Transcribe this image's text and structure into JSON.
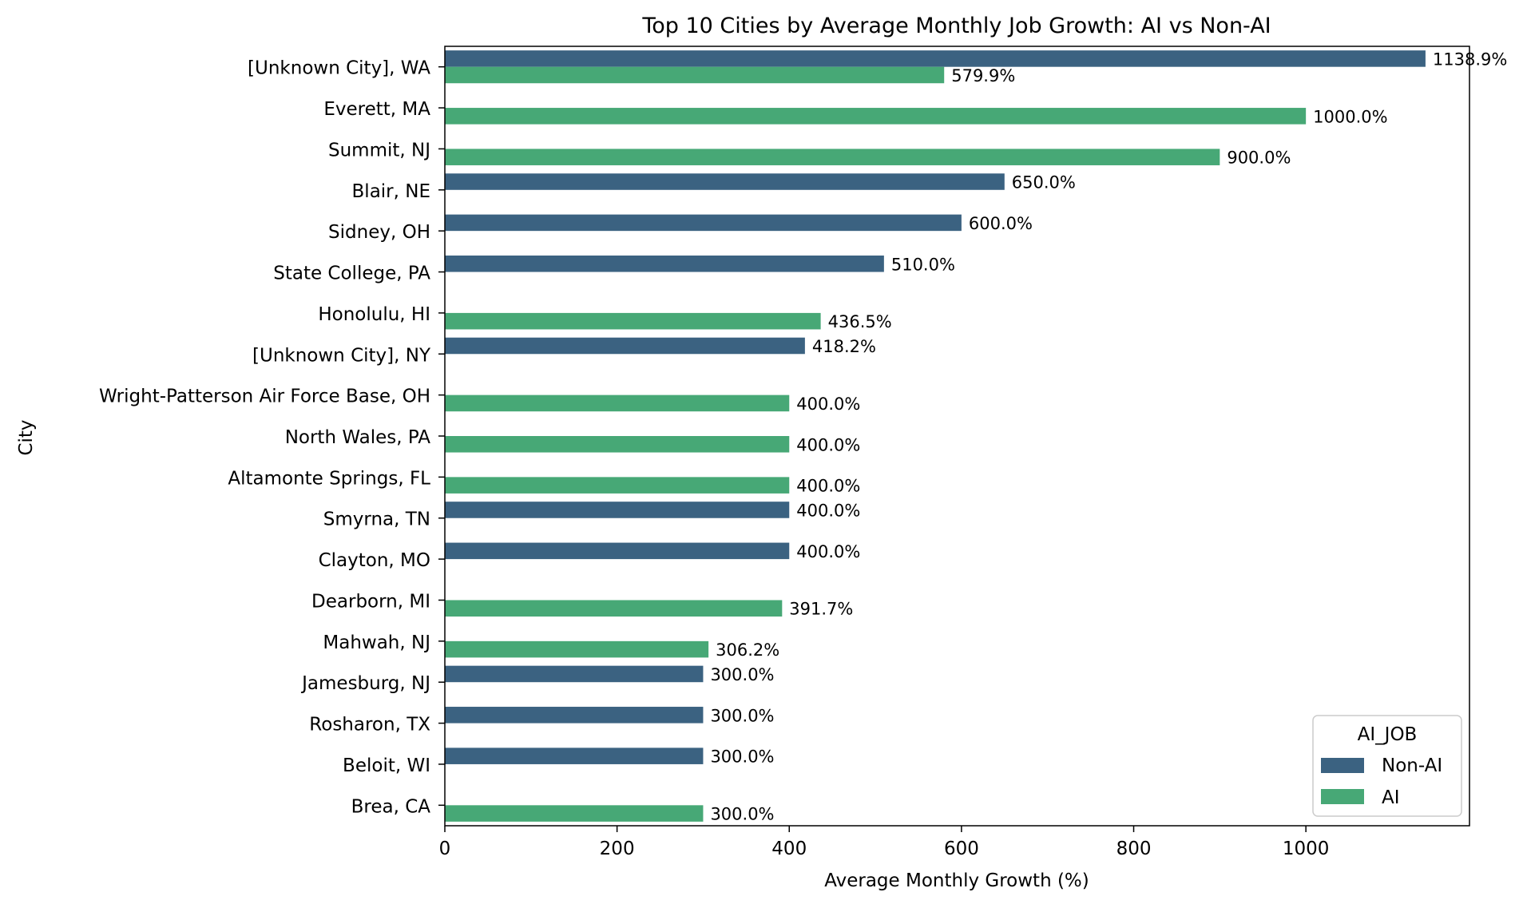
{
  "chart_data": {
    "type": "bar",
    "orientation": "horizontal",
    "title": "Top 10 Cities by Average Monthly Job Growth: AI vs Non-AI",
    "xlabel": "Average Monthly Growth (%)",
    "ylabel": "City",
    "xlim": [
      0,
      1190
    ],
    "xticks": [
      0,
      200,
      400,
      600,
      800,
      1000
    ],
    "grid": false,
    "legend": {
      "title": "AI_JOB",
      "placement": "lower-right",
      "entries": [
        {
          "name": "Non-AI",
          "color": "#3b6281"
        },
        {
          "name": "AI",
          "color": "#47a876"
        }
      ]
    },
    "categories": [
      "[Unknown City], WA",
      "Everett, MA",
      "Summit, NJ",
      "Blair, NE",
      "Sidney, OH",
      "State College, PA",
      "Honolulu, HI",
      "[Unknown City], NY",
      "Wright-Patterson Air Force Base, OH",
      "North Wales, PA",
      "Altamonte Springs, FL",
      "Smyrna, TN",
      "Clayton, MO",
      "Dearborn, MI",
      "Mahwah, NJ",
      "Jamesburg, NJ",
      "Rosharon, TX",
      "Beloit, WI",
      "Brea, CA"
    ],
    "series": [
      {
        "name": "Non-AI",
        "color": "#3b6281",
        "values": [
          1138.9,
          null,
          null,
          650.0,
          600.0,
          510.0,
          null,
          418.2,
          null,
          null,
          null,
          400.0,
          400.0,
          null,
          null,
          300.0,
          300.0,
          300.0,
          null
        ],
        "labels": [
          "1138.9%",
          null,
          null,
          "650.0%",
          "600.0%",
          "510.0%",
          null,
          "418.2%",
          null,
          null,
          null,
          "400.0%",
          "400.0%",
          null,
          null,
          "300.0%",
          "300.0%",
          "300.0%",
          null
        ]
      },
      {
        "name": "AI",
        "color": "#47a876",
        "values": [
          579.9,
          1000.0,
          900.0,
          null,
          null,
          null,
          436.5,
          null,
          400.0,
          400.0,
          400.0,
          null,
          null,
          391.7,
          306.2,
          null,
          null,
          null,
          300.0
        ],
        "labels": [
          "579.9%",
          "1000.0%",
          "900.0%",
          null,
          null,
          null,
          "436.5%",
          null,
          "400.0%",
          "400.0%",
          "400.0%",
          null,
          null,
          "391.7%",
          "306.2%",
          null,
          null,
          null,
          "300.0%"
        ]
      }
    ]
  }
}
